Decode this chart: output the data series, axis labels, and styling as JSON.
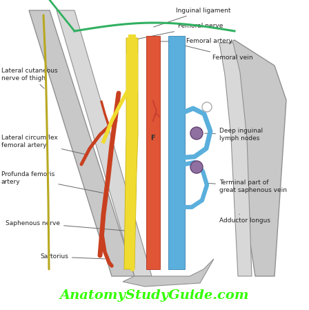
{
  "bg_color": "#ffffff",
  "website_text": "AnatomyStudyGuide.com",
  "website_color": "#33ff00",
  "website_fontsize": 14,
  "label_fontsize": 6.5,
  "labels": {
    "inguinal_ligament": "Inguinal ligament",
    "femoral_nerve": "Femoral nerve",
    "femoral_artery": "Femoral artery",
    "femoral_vein": "Femoral vein",
    "lateral_cutaneous": "Lateral cutaneous\nnerve of thigh",
    "lateral_circumflex": "Lateral circumflex\nfemoral artery",
    "profunda_femoris": "Profunda femoris\nartery",
    "saphenous_nerve": "Saphenous nerve",
    "sartorius": "Sartorius",
    "deep_inguinal": "Deep inguinal\nlymph nodes",
    "terminal_part": "Terminal part of\ngreat saphenous vein",
    "adductor_longus": "Adductor longus"
  },
  "colors": {
    "muscle_dark": "#b0b0b0",
    "muscle_mid": "#c8c8c8",
    "muscle_light": "#d8d8d8",
    "muscle_hatch": "#909090",
    "femoral_artery": "#e05535",
    "femoral_vein": "#5aafdc",
    "femoral_nerve": "#f0dc30",
    "inguinal_ligament": "#30b060",
    "lateral_nerve": "#c8b820",
    "profunda_red": "#c84020",
    "lymph_node": "#9070a0",
    "label_line": "#666666",
    "label_text": "#222222"
  }
}
